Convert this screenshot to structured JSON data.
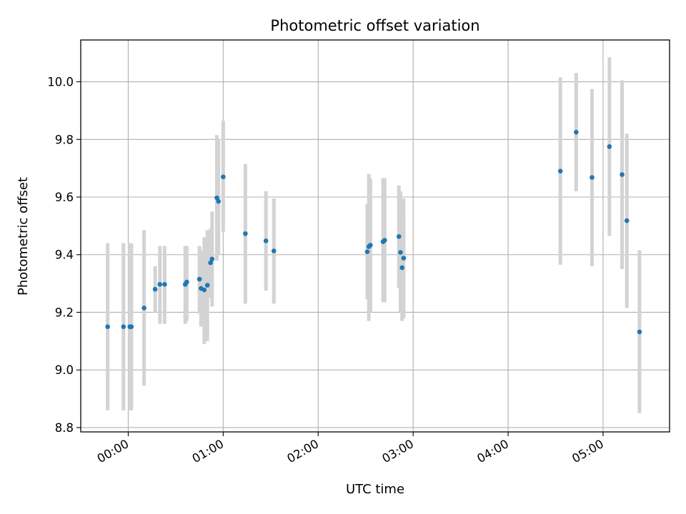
{
  "chart_data": {
    "type": "scatter",
    "title": "Photometric offset variation",
    "xlabel": "UTC time",
    "ylabel": "Photometric offset",
    "x_unit": "UTC time (HH:MM)",
    "xlim": [
      "23:30",
      "05:42"
    ],
    "ylim": [
      8.785,
      10.145
    ],
    "x_ticks": [
      "00:00",
      "01:00",
      "02:00",
      "03:00",
      "04:00",
      "05:00"
    ],
    "y_ticks": [
      8.8,
      9.0,
      9.2,
      9.4,
      9.6,
      9.8,
      10.0
    ],
    "y_tick_labels": [
      "8.8",
      "9.0",
      "9.2",
      "9.4",
      "9.6",
      "9.8",
      "10.0"
    ],
    "grid": true,
    "legend": "none",
    "x_tick_rotation": "30°",
    "series": [
      {
        "marker_color": "#1f77b4",
        "error_bar_color": "#d3d3d3",
        "points": [
          {
            "x": "23:47",
            "y": 9.15,
            "ylow": 8.86,
            "yhigh": 9.44
          },
          {
            "x": "23:57",
            "y": 9.15,
            "ylow": 8.86,
            "yhigh": 9.44
          },
          {
            "x": "00:01",
            "y": 9.15,
            "ylow": 8.86,
            "yhigh": 9.44
          },
          {
            "x": "00:02",
            "y": 9.15,
            "ylow": 8.86,
            "yhigh": 9.44
          },
          {
            "x": "00:10",
            "y": 9.215,
            "ylow": 8.945,
            "yhigh": 9.485
          },
          {
            "x": "00:17",
            "y": 9.28,
            "ylow": 9.2,
            "yhigh": 9.36
          },
          {
            "x": "00:20",
            "y": 9.297,
            "ylow": 9.16,
            "yhigh": 9.43
          },
          {
            "x": "00:23",
            "y": 9.297,
            "ylow": 9.16,
            "yhigh": 9.43
          },
          {
            "x": "00:36",
            "y": 9.297,
            "ylow": 9.16,
            "yhigh": 9.43
          },
          {
            "x": "00:37",
            "y": 9.305,
            "ylow": 9.17,
            "yhigh": 9.43
          },
          {
            "x": "00:45",
            "y": 9.315,
            "ylow": 9.195,
            "yhigh": 9.43
          },
          {
            "x": "00:46",
            "y": 9.283,
            "ylow": 9.15,
            "yhigh": 9.415
          },
          {
            "x": "00:48",
            "y": 9.278,
            "ylow": 9.09,
            "yhigh": 9.46
          },
          {
            "x": "00:50",
            "y": 9.294,
            "ylow": 9.1,
            "yhigh": 9.485
          },
          {
            "x": "00:52",
            "y": 9.372,
            "ylow": 9.25,
            "yhigh": 9.49
          },
          {
            "x": "00:53",
            "y": 9.385,
            "ylow": 9.22,
            "yhigh": 9.55
          },
          {
            "x": "00:56",
            "y": 9.597,
            "ylow": 9.38,
            "yhigh": 9.815
          },
          {
            "x": "00:57",
            "y": 9.585,
            "ylow": 9.4,
            "yhigh": 9.8
          },
          {
            "x": "01:00",
            "y": 9.67,
            "ylow": 9.48,
            "yhigh": 9.865
          },
          {
            "x": "01:14",
            "y": 9.473,
            "ylow": 9.23,
            "yhigh": 9.715
          },
          {
            "x": "01:27",
            "y": 9.448,
            "ylow": 9.275,
            "yhigh": 9.62
          },
          {
            "x": "01:32",
            "y": 9.413,
            "ylow": 9.23,
            "yhigh": 9.595
          },
          {
            "x": "02:31",
            "y": 9.41,
            "ylow": 9.245,
            "yhigh": 9.575
          },
          {
            "x": "02:32",
            "y": 9.428,
            "ylow": 9.17,
            "yhigh": 9.68
          },
          {
            "x": "02:33",
            "y": 9.433,
            "ylow": 9.2,
            "yhigh": 9.665
          },
          {
            "x": "02:41",
            "y": 9.445,
            "ylow": 9.235,
            "yhigh": 9.665
          },
          {
            "x": "02:42",
            "y": 9.45,
            "ylow": 9.235,
            "yhigh": 9.665
          },
          {
            "x": "02:51",
            "y": 9.463,
            "ylow": 9.285,
            "yhigh": 9.64
          },
          {
            "x": "02:52",
            "y": 9.408,
            "ylow": 9.2,
            "yhigh": 9.62
          },
          {
            "x": "02:53",
            "y": 9.355,
            "ylow": 9.17,
            "yhigh": 9.535
          },
          {
            "x": "02:54",
            "y": 9.388,
            "ylow": 9.18,
            "yhigh": 9.595
          },
          {
            "x": "04:33",
            "y": 9.69,
            "ylow": 9.365,
            "yhigh": 10.015
          },
          {
            "x": "04:43",
            "y": 9.825,
            "ylow": 9.62,
            "yhigh": 10.03
          },
          {
            "x": "04:53",
            "y": 9.668,
            "ylow": 9.36,
            "yhigh": 9.975
          },
          {
            "x": "05:04",
            "y": 9.775,
            "ylow": 9.465,
            "yhigh": 10.085
          },
          {
            "x": "05:12",
            "y": 9.678,
            "ylow": 9.35,
            "yhigh": 10.005
          },
          {
            "x": "05:15",
            "y": 9.518,
            "ylow": 9.215,
            "yhigh": 9.82
          },
          {
            "x": "05:23",
            "y": 9.132,
            "ylow": 8.85,
            "yhigh": 9.415
          }
        ]
      }
    ]
  }
}
